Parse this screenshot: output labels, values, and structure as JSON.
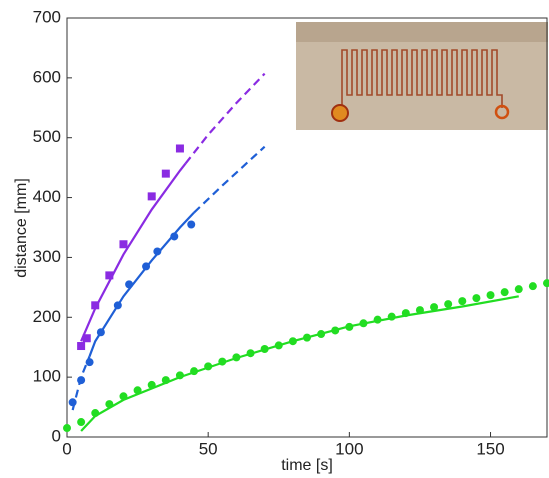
{
  "chart_data": {
    "type": "scatter",
    "x_label": "time [s]",
    "y_label": "distance [mm]",
    "xlim": [
      0,
      170
    ],
    "xticks": [
      0,
      50,
      100,
      150
    ],
    "ylim": [
      0,
      700
    ],
    "yticks": [
      0,
      100,
      200,
      300,
      400,
      500,
      600,
      700
    ],
    "points": [
      {
        "color": "#8a2be2",
        "marker": "square",
        "x": [
          5,
          7,
          10,
          15,
          20,
          30,
          35,
          40
        ],
        "values": [
          152,
          165,
          220,
          270,
          322,
          402,
          440,
          482
        ]
      },
      {
        "color": "#1f5fd6",
        "marker": "circle",
        "x": [
          2,
          5,
          8,
          12,
          18,
          22,
          28,
          32,
          38,
          44
        ],
        "values": [
          58,
          95,
          125,
          175,
          220,
          255,
          285,
          310,
          335,
          355
        ]
      },
      {
        "color": "#22dd22",
        "marker": "circle",
        "x": [
          0,
          5,
          10,
          15,
          20,
          25,
          30,
          35,
          40,
          45,
          50,
          55,
          60,
          65,
          70,
          75,
          80,
          85,
          90,
          95,
          100,
          105,
          110,
          115,
          120,
          125,
          130,
          135,
          140,
          145,
          150,
          155,
          160,
          165,
          170
        ],
        "values": [
          15,
          25,
          40,
          55,
          68,
          78,
          87,
          95,
          103,
          110,
          118,
          126,
          133,
          140,
          147,
          153,
          160,
          166,
          172,
          178,
          184,
          190,
          196,
          201,
          207,
          212,
          217,
          222,
          227,
          232,
          237,
          242,
          247,
          252,
          257
        ]
      }
    ],
    "fits": [
      {
        "color": "#8a2be2",
        "style": "solid",
        "x": [
          5,
          10,
          20,
          30,
          40,
          42
        ],
        "values": [
          160,
          215,
          305,
          380,
          445,
          457
        ]
      },
      {
        "color": "#8a2be2",
        "style": "dashed",
        "x": [
          42,
          50,
          60,
          70
        ],
        "values": [
          457,
          505,
          558,
          607
        ]
      },
      {
        "color": "#1f5fd6",
        "style": "dashed",
        "x": [
          2,
          5,
          8
        ],
        "values": [
          45,
          100,
          135
        ]
      },
      {
        "color": "#1f5fd6",
        "style": "solid",
        "x": [
          8,
          10,
          20,
          30,
          40,
          45
        ],
        "values": [
          135,
          160,
          235,
          295,
          350,
          375
        ]
      },
      {
        "color": "#1f5fd6",
        "style": "dashed",
        "x": [
          45,
          55,
          70
        ],
        "values": [
          375,
          420,
          485
        ]
      },
      {
        "color": "#22dd22",
        "style": "solid",
        "x": [
          5,
          10,
          20,
          40,
          60,
          80,
          100,
          120,
          140,
          160
        ],
        "values": [
          10,
          35,
          62,
          100,
          132,
          160,
          185,
          203,
          218,
          235
        ]
      }
    ]
  }
}
